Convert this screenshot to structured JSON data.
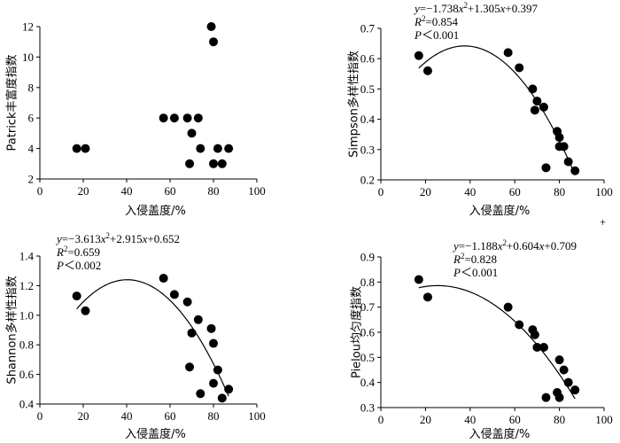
{
  "chart_data": [
    {
      "type": "scatter",
      "panel": "top-left",
      "xlabel": "入侵盖度/%",
      "ylabel": "Patrick丰富度指数",
      "xlim": [
        0,
        100
      ],
      "ylim": [
        2,
        12
      ],
      "xticks": [
        0,
        20,
        40,
        60,
        80,
        100
      ],
      "yticks": [
        2,
        4,
        6,
        8,
        10,
        12
      ],
      "points": [
        [
          17,
          4
        ],
        [
          21,
          4
        ],
        [
          57,
          6
        ],
        [
          62,
          6
        ],
        [
          68,
          6
        ],
        [
          69,
          3
        ],
        [
          70,
          5
        ],
        [
          73,
          6
        ],
        [
          74,
          4
        ],
        [
          79,
          12
        ],
        [
          80,
          11
        ],
        [
          80,
          3
        ],
        [
          82,
          4
        ],
        [
          84,
          3
        ],
        [
          87,
          4
        ]
      ],
      "fit": null,
      "annotations": []
    },
    {
      "type": "scatter",
      "panel": "top-right",
      "xlabel": "入侵盖度/%",
      "ylabel": "Simpson多样性指数",
      "xlim": [
        0,
        100
      ],
      "ylim": [
        0.2,
        0.7
      ],
      "xticks": [
        0,
        20,
        40,
        60,
        80,
        100
      ],
      "yticks": [
        0.2,
        0.3,
        0.4,
        0.5,
        0.6,
        0.7
      ],
      "points": [
        [
          17,
          0.61
        ],
        [
          21,
          0.56
        ],
        [
          57,
          0.62
        ],
        [
          62,
          0.57
        ],
        [
          68,
          0.5
        ],
        [
          69,
          0.43
        ],
        [
          70,
          0.46
        ],
        [
          73,
          0.44
        ],
        [
          74,
          0.24
        ],
        [
          79,
          0.36
        ],
        [
          80,
          0.34
        ],
        [
          80,
          0.31
        ],
        [
          82,
          0.31
        ],
        [
          84,
          0.26
        ],
        [
          87,
          0.23
        ]
      ],
      "fit": {
        "a": -1.738,
        "b": 1.305,
        "c": 0.397,
        "x_from": 17,
        "x_to": 87
      },
      "annotations": [
        "y=−1.738x²+1.305x+0.397",
        "R²=0.854",
        "P＜0.001"
      ]
    },
    {
      "type": "scatter",
      "panel": "bottom-left",
      "xlabel": "入侵盖度/%",
      "ylabel": "Shannon多样性指数",
      "xlim": [
        0,
        100
      ],
      "ylim": [
        0.4,
        1.4
      ],
      "xticks": [
        0,
        20,
        40,
        60,
        80,
        100
      ],
      "yticks": [
        0.4,
        0.6,
        0.8,
        1.0,
        1.2,
        1.4
      ],
      "points": [
        [
          17,
          1.13
        ],
        [
          21,
          1.03
        ],
        [
          57,
          1.25
        ],
        [
          62,
          1.14
        ],
        [
          68,
          1.09
        ],
        [
          69,
          0.65
        ],
        [
          70,
          0.88
        ],
        [
          73,
          0.97
        ],
        [
          74,
          0.47
        ],
        [
          79,
          0.91
        ],
        [
          80,
          0.81
        ],
        [
          80,
          0.54
        ],
        [
          82,
          0.63
        ],
        [
          84,
          0.44
        ],
        [
          87,
          0.5
        ]
      ],
      "fit": {
        "a": -3.613,
        "b": 2.915,
        "c": 0.652,
        "x_from": 17,
        "x_to": 87
      },
      "annotations": [
        "y=−3.613x²+2.915x+0.652",
        "R²=0.659",
        "P＜0.002"
      ]
    },
    {
      "type": "scatter",
      "panel": "bottom-right",
      "xlabel": "入侵盖度/%",
      "ylabel": "Pielou均匀度指数",
      "xlim": [
        0,
        100
      ],
      "ylim": [
        0.3,
        0.9
      ],
      "xticks": [
        0,
        20,
        40,
        60,
        80,
        100
      ],
      "yticks": [
        0.3,
        0.4,
        0.5,
        0.6,
        0.7,
        0.8,
        0.9
      ],
      "points": [
        [
          17,
          0.81
        ],
        [
          21,
          0.74
        ],
        [
          57,
          0.7
        ],
        [
          62,
          0.63
        ],
        [
          68,
          0.61
        ],
        [
          69,
          0.59
        ],
        [
          70,
          0.54
        ],
        [
          73,
          0.54
        ],
        [
          74,
          0.34
        ],
        [
          79,
          0.36
        ],
        [
          80,
          0.49
        ],
        [
          80,
          0.34
        ],
        [
          82,
          0.45
        ],
        [
          84,
          0.4
        ],
        [
          87,
          0.37
        ]
      ],
      "fit": {
        "a": -1.188,
        "b": 0.604,
        "c": 0.709,
        "x_from": 17,
        "x_to": 87
      },
      "annotations": [
        "y=−1.188x²+0.604x+0.709",
        "R²=0.828",
        "P＜0.001"
      ]
    }
  ],
  "extra_mark": "+"
}
